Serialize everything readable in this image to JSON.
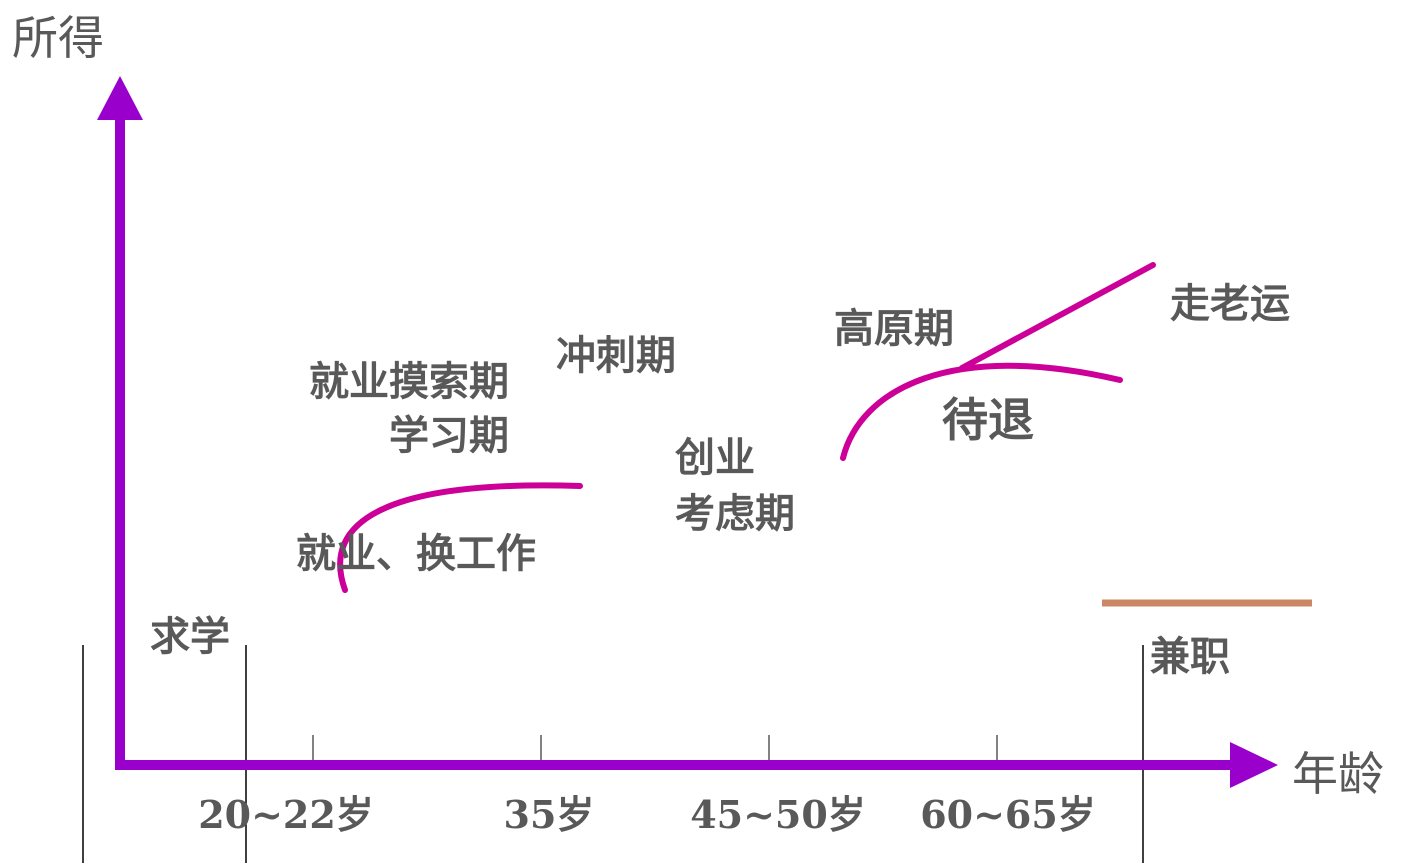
{
  "colors": {
    "axis": "#9900CC",
    "curve": "#CC0099",
    "bar": "#CC8866",
    "text": "#595959",
    "guide": "#000000"
  },
  "axes": {
    "y_label": "所得",
    "x_label": "年龄"
  },
  "ages": [
    "20~22岁",
    "35岁",
    "45~50岁",
    "60~65岁"
  ],
  "stages": {
    "study": "求学",
    "job_change": "就业、换工作",
    "explore_line1": "就业摸索期",
    "explore_line2": "学习期",
    "sprint": "冲刺期",
    "startup_line1": "创业",
    "startup_line2": "考虑期",
    "plateau": "高原期",
    "pre_retire": "待退",
    "late_luck": "走老运",
    "part_time": "兼职"
  }
}
